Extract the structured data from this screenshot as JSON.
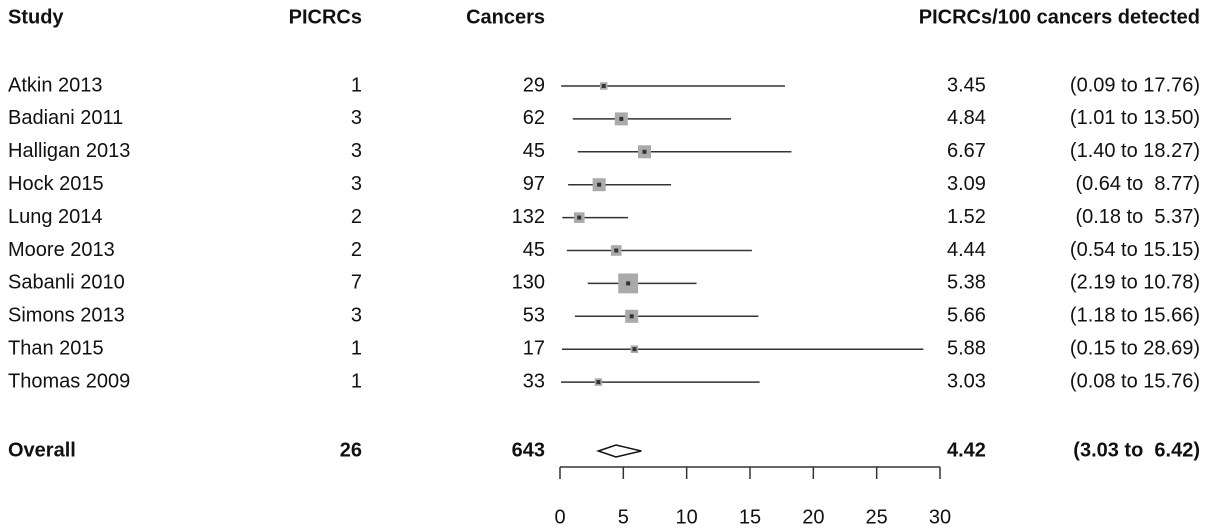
{
  "chart_data": {
    "type": "forest",
    "columns": [
      "Study",
      "PICRCs",
      "Cancers",
      "PICRCs/100 cancers detected"
    ],
    "studies": [
      "Atkin 2013",
      "Badiani 2011",
      "Halligan 2013",
      "Hock 2015",
      "Lung 2014",
      "Moore 2013",
      "Sabanli 2010",
      "Simons 2013",
      "Than 2015",
      "Thomas 2009"
    ],
    "picrcs": [
      1,
      3,
      3,
      3,
      2,
      2,
      7,
      3,
      1,
      1
    ],
    "cancers": [
      29,
      62,
      45,
      97,
      132,
      45,
      130,
      53,
      17,
      33
    ],
    "values": [
      3.45,
      4.84,
      6.67,
      3.09,
      1.52,
      4.44,
      5.38,
      5.66,
      5.88,
      3.03
    ],
    "lower": [
      0.09,
      1.01,
      1.4,
      0.64,
      0.18,
      0.54,
      2.19,
      1.18,
      0.15,
      0.08
    ],
    "upper": [
      17.76,
      13.5,
      18.27,
      8.77,
      5.37,
      15.15,
      10.78,
      15.66,
      28.69,
      15.76
    ],
    "ci_labels": [
      "(0.09 to 17.76)",
      "(1.01 to 13.50)",
      "(1.40 to 18.27)",
      "(0.64 to  8.77)",
      "(0.18 to  5.37)",
      "(0.54 to 15.15)",
      "(2.19 to 10.78)",
      "(1.18 to 15.66)",
      "(0.15 to 28.69)",
      "(0.08 to 15.76)"
    ],
    "overall": {
      "label": "Overall",
      "picrcs": 26,
      "cancers": 643,
      "value": 4.42,
      "lower": 3.03,
      "upper": 6.42,
      "ci_label": "(3.03 to  6.42)"
    },
    "xlim": [
      0,
      30
    ],
    "xticks": [
      0,
      5,
      10,
      15,
      20,
      25,
      30
    ],
    "color": "#aaaaaa",
    "line_color": "#333333"
  }
}
